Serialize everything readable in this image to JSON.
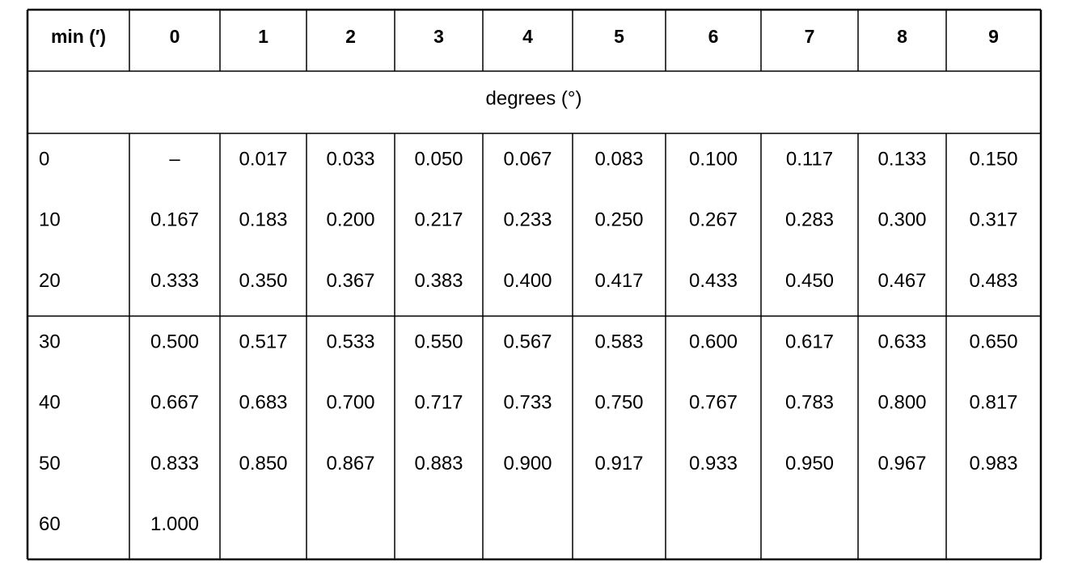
{
  "table": {
    "header": [
      "min (′)",
      "0",
      "1",
      "2",
      "3",
      "4",
      "5",
      "6",
      "7",
      "8",
      "9"
    ],
    "subheader": "degrees (°)",
    "groups": [
      [
        [
          "0",
          "–",
          "0.017",
          "0.033",
          "0.050",
          "0.067",
          "0.083",
          "0.100",
          "0.117",
          "0.133",
          "0.150"
        ],
        [
          "10",
          "0.167",
          "0.183",
          "0.200",
          "0.217",
          "0.233",
          "0.250",
          "0.267",
          "0.283",
          "0.300",
          "0.317"
        ],
        [
          "20",
          "0.333",
          "0.350",
          "0.367",
          "0.383",
          "0.400",
          "0.417",
          "0.433",
          "0.450",
          "0.467",
          "0.483"
        ]
      ],
      [
        [
          "30",
          "0.500",
          "0.517",
          "0.533",
          "0.550",
          "0.567",
          "0.583",
          "0.600",
          "0.617",
          "0.633",
          "0.650"
        ],
        [
          "40",
          "0.667",
          "0.683",
          "0.700",
          "0.717",
          "0.733",
          "0.750",
          "0.767",
          "0.783",
          "0.800",
          "0.817"
        ],
        [
          "50",
          "0.833",
          "0.850",
          "0.867",
          "0.883",
          "0.900",
          "0.917",
          "0.933",
          "0.950",
          "0.967",
          "0.983"
        ],
        [
          "60",
          "1.000"
        ]
      ]
    ]
  }
}
